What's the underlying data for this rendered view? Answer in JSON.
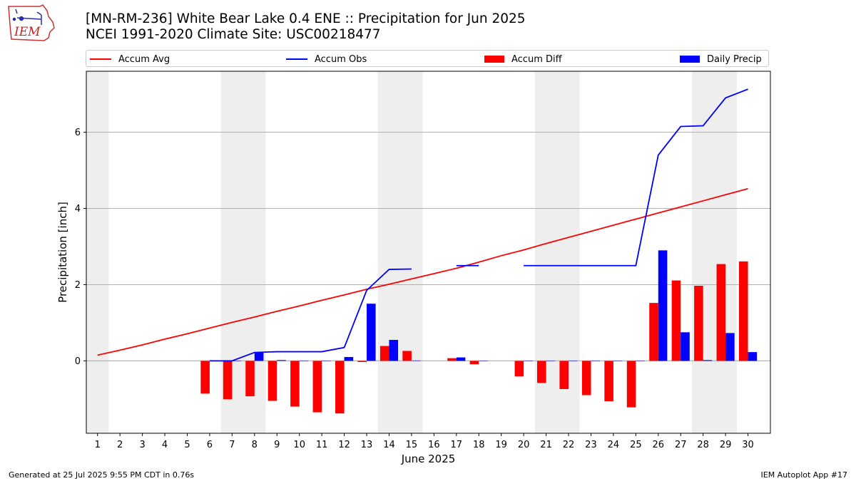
{
  "logo": {
    "text": "IEM"
  },
  "header": {
    "title_line1": "[MN-RM-236] White Bear Lake 0.4 ENE :: Precipitation for Jun 2025",
    "title_line2": "NCEI 1991-2020 Climate Site: USC00218477"
  },
  "legend": [
    {
      "label": "Accum Avg",
      "kind": "line",
      "color": "#ff0000"
    },
    {
      "label": "Accum Obs",
      "kind": "line",
      "color": "#0000ff"
    },
    {
      "label": "Accum Diff",
      "kind": "bar",
      "color": "#ff0000"
    },
    {
      "label": "Daily Precip",
      "kind": "bar",
      "color": "#0000ff"
    }
  ],
  "footer": {
    "left": "Generated at 25 Jul 2025 9:55 PM CDT in 0.76s",
    "right": "IEM Autoplot App #17"
  },
  "chart_data": {
    "type": "bar",
    "xlabel": "June 2025",
    "ylabel": "Precipitation [inch]",
    "xlim": [
      0.5,
      31
    ],
    "ylim": [
      -1.9,
      7.6
    ],
    "yticks": [
      0,
      2,
      4,
      6
    ],
    "grid": "horizontal",
    "legend_position": "top",
    "weekend_shading": [
      [
        0.5,
        1.5
      ],
      [
        6.5,
        8.5
      ],
      [
        13.5,
        15.5
      ],
      [
        20.5,
        22.5
      ],
      [
        27.5,
        29.5
      ]
    ],
    "shade_color": "#eeeeee",
    "days": [
      1,
      2,
      3,
      4,
      5,
      6,
      7,
      8,
      9,
      10,
      11,
      12,
      13,
      14,
      15,
      16,
      17,
      18,
      19,
      20,
      21,
      22,
      23,
      24,
      25,
      26,
      27,
      28,
      29,
      30
    ],
    "series": [
      {
        "name": "Accum Avg",
        "kind": "line",
        "color": "#ff0000",
        "values": [
          0.15,
          0.28,
          0.42,
          0.57,
          0.71,
          0.86,
          1.01,
          1.15,
          1.3,
          1.44,
          1.59,
          1.73,
          1.88,
          2.01,
          2.15,
          2.29,
          2.43,
          2.59,
          2.76,
          2.91,
          3.08,
          3.24,
          3.4,
          3.56,
          3.72,
          3.88,
          4.04,
          4.2,
          4.36,
          4.52
        ]
      },
      {
        "name": "Accum Obs",
        "kind": "line",
        "color": "#0000ff",
        "values": [
          null,
          null,
          null,
          null,
          null,
          0.0,
          0.0,
          0.22,
          0.24,
          0.24,
          0.24,
          0.35,
          1.85,
          2.4,
          2.41,
          null,
          2.5,
          2.5,
          null,
          2.5,
          2.5,
          2.5,
          2.5,
          2.5,
          2.5,
          5.4,
          6.15,
          6.17,
          6.9,
          7.13
        ]
      },
      {
        "name": "Accum Diff",
        "kind": "bar",
        "color": "#ff0000",
        "values": [
          null,
          null,
          null,
          null,
          null,
          -0.86,
          -1.01,
          -0.93,
          -1.05,
          -1.2,
          -1.35,
          -1.38,
          -0.03,
          0.39,
          0.26,
          null,
          0.07,
          -0.09,
          null,
          -0.41,
          -0.58,
          -0.74,
          -0.9,
          -1.06,
          -1.22,
          1.52,
          2.11,
          1.97,
          2.54,
          2.61
        ]
      },
      {
        "name": "Daily Precip",
        "kind": "bar",
        "color": "#0000ff",
        "values": [
          null,
          null,
          null,
          null,
          null,
          0.0,
          0.0,
          0.22,
          0.02,
          0.0,
          0.0,
          0.1,
          1.5,
          0.55,
          0.01,
          null,
          0.09,
          0.0,
          null,
          0.0,
          0.0,
          0.0,
          0.0,
          0.0,
          0.0,
          2.9,
          0.75,
          0.02,
          0.73,
          0.23
        ]
      }
    ]
  }
}
